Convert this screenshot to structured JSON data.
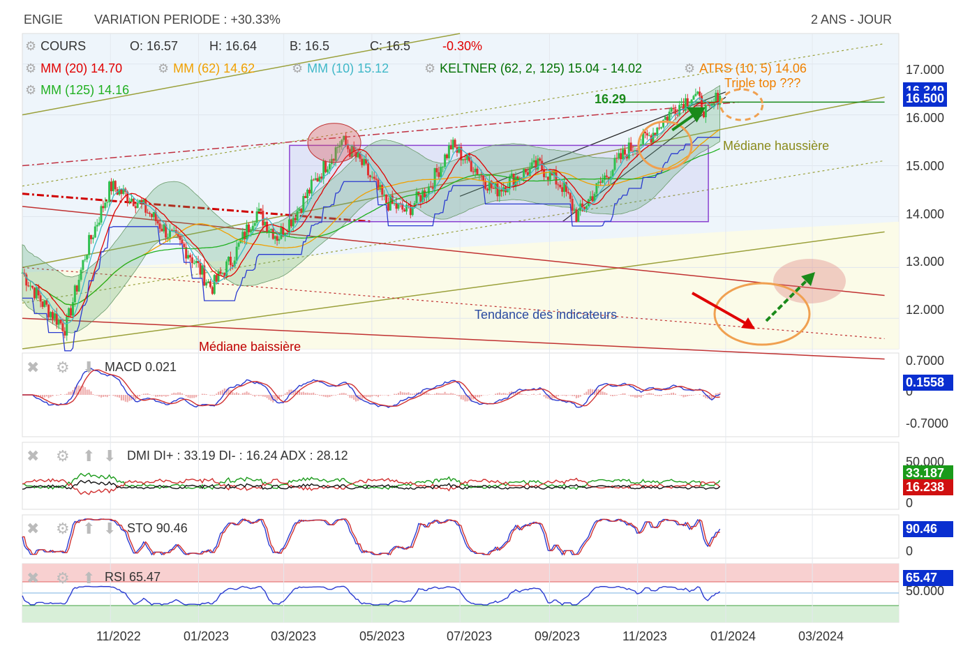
{
  "header": {
    "ticker": "ENGIE",
    "variation": "VARIATION PERIODE : +30.33%",
    "period": "2 ANS - JOUR"
  },
  "legend": {
    "cours_label": "COURS",
    "open": "O: 16.57",
    "high": "H: 16.64",
    "low": "B: 16.5",
    "close": "C: 16.5",
    "change": "-0.30%",
    "mm20": "MM (20)  14.70",
    "mm62": "MM (62)  14.62",
    "mm10": "MM (10)  15.12",
    "keltner": "KELTNER (62, 2, 125)  15.04 - 14.02",
    "atrs": "ATRS (10, 5)  14.06",
    "mm125": "MM (125)  14.16"
  },
  "annotations": {
    "level": "16.29",
    "triple_top": "Triple top ???",
    "mediane_haussiere": "Médiane haussière",
    "mediane_baissiere": "Médiane baissière",
    "tendance": "Tendance des indicateurs"
  },
  "panels": {
    "macd": {
      "label": "MACD",
      "value": "0.021",
      "axis": [
        "0.7000",
        "0",
        "-0.7000"
      ],
      "tag": "0.1558"
    },
    "dmi": {
      "label": "DMI",
      "value": "DI+ : 33.19 DI- : 16.24 ADX : 28.12",
      "axis": [
        "50.000",
        "0"
      ],
      "tag_plus": "33.187",
      "tag_minus": "16.238"
    },
    "sto": {
      "label": "STO",
      "value": "90.46",
      "axis": [
        "0"
      ],
      "tag": "90.46"
    },
    "rsi": {
      "label": "RSI",
      "value": "65.47",
      "axis": [
        "50.000"
      ],
      "tag": "65.47"
    }
  },
  "price_axis": {
    "ticks": [
      "17.000",
      "16.000",
      "15.000",
      "14.000",
      "13.000",
      "12.000"
    ],
    "tag_last": "16.500",
    "tag_hidden": "16.349"
  },
  "x_axis": [
    "11/2022",
    "01/2023",
    "03/2023",
    "05/2023",
    "07/2023",
    "09/2023",
    "11/2023",
    "01/2024",
    "03/2024"
  ],
  "colors": {
    "mm20": "#e00000",
    "mm62": "#f0a000",
    "mm10": "#40b8c8",
    "keltner": "#007000",
    "atrs": "#f08000",
    "mm125": "#20b020",
    "change": "#e00000",
    "up": "#2fbf4f",
    "down": "#e03030",
    "tag_blue": "#0a2fd0",
    "tag_green": "#1a9a1a",
    "tag_red": "#d01010"
  },
  "chart_data": {
    "type": "line",
    "title": "ENGIE",
    "x_start": "2022-09",
    "ylim": [
      11.4,
      17.6
    ],
    "close_anchors": [
      [
        "2022-09-01",
        12.9
      ],
      [
        "2022-09-15",
        12.3
      ],
      [
        "2022-10-01",
        11.8
      ],
      [
        "2022-10-15",
        13.3
      ],
      [
        "2022-11-01",
        14.6
      ],
      [
        "2022-11-20",
        14.3
      ],
      [
        "2022-12-10",
        13.7
      ],
      [
        "2022-12-25",
        13.3
      ],
      [
        "2023-01-10",
        12.6
      ],
      [
        "2023-01-25",
        13.2
      ],
      [
        "2023-02-10",
        14.1
      ],
      [
        "2023-02-25",
        13.6
      ],
      [
        "2023-03-10",
        14.1
      ],
      [
        "2023-03-25",
        14.8
      ],
      [
        "2023-04-10",
        15.5
      ],
      [
        "2023-04-25",
        15.0
      ],
      [
        "2023-05-10",
        14.3
      ],
      [
        "2023-05-25",
        14.1
      ],
      [
        "2023-06-10",
        14.6
      ],
      [
        "2023-06-25",
        15.4
      ],
      [
        "2023-07-10",
        15.0
      ],
      [
        "2023-07-25",
        14.5
      ],
      [
        "2023-08-10",
        14.8
      ],
      [
        "2023-08-25",
        15.0
      ],
      [
        "2023-09-10",
        14.6
      ],
      [
        "2023-09-20",
        14.0
      ],
      [
        "2023-10-10",
        14.8
      ],
      [
        "2023-10-25",
        15.3
      ],
      [
        "2023-11-10",
        15.6
      ],
      [
        "2023-11-25",
        16.1
      ],
      [
        "2023-12-10",
        16.4
      ],
      [
        "2023-12-20",
        16.0
      ],
      [
        "2023-12-29",
        16.5
      ]
    ],
    "macd": 0.021,
    "di_plus": 33.19,
    "di_minus": 16.24,
    "adx": 28.12,
    "sto": 90.46,
    "rsi": 65.47
  }
}
